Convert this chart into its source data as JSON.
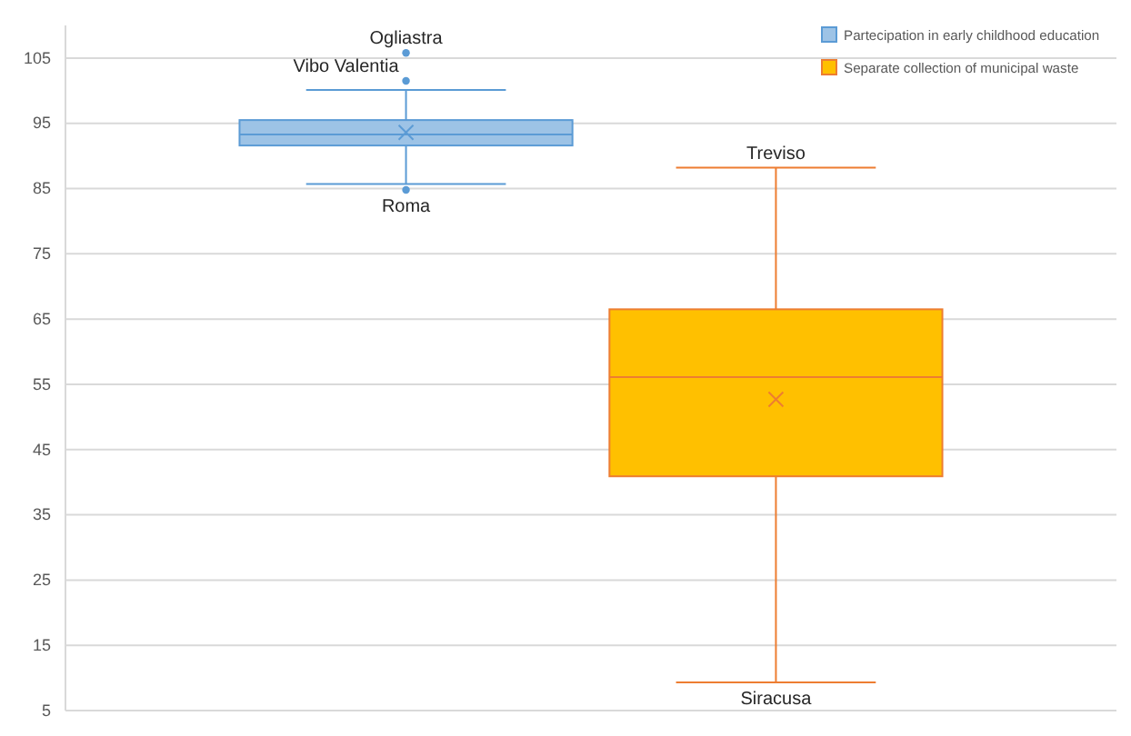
{
  "chart_data": {
    "type": "box",
    "categories": [
      null
    ],
    "series": [
      {
        "name": "Partecipation in early childhood education",
        "color": "#9dc3e6",
        "boxes": [
          {
            "low": 85.7,
            "q1": 91.6,
            "median": 93.3,
            "q3": 95.5,
            "high": 100.1,
            "mean": 93.6,
            "outliers": [
              105.8,
              101.5,
              84.8
            ]
          }
        ]
      },
      {
        "name": "Separate collection of municipal waste",
        "color": "#ffc000",
        "boxes": [
          {
            "low": 9.3,
            "q1": 40.9,
            "median": 56.1,
            "q3": 66.5,
            "high": 88.2,
            "mean": 52.7
          }
        ]
      }
    ],
    "ylim": [
      5,
      110
    ],
    "yticks": [
      5,
      15,
      25,
      35,
      45,
      55,
      65,
      75,
      85,
      95,
      105
    ],
    "grid": "y",
    "legend": "top right",
    "marker": "circle",
    "annotations": [
      "Ogliastra",
      "Vibo Valentia",
      {
        "text": "Roma",
        "y": 84.8
      },
      {
        "text": "Treviso",
        "y": 88.2
      },
      {
        "text": "Siracusa",
        "y": 9.3
      }
    ]
  }
}
